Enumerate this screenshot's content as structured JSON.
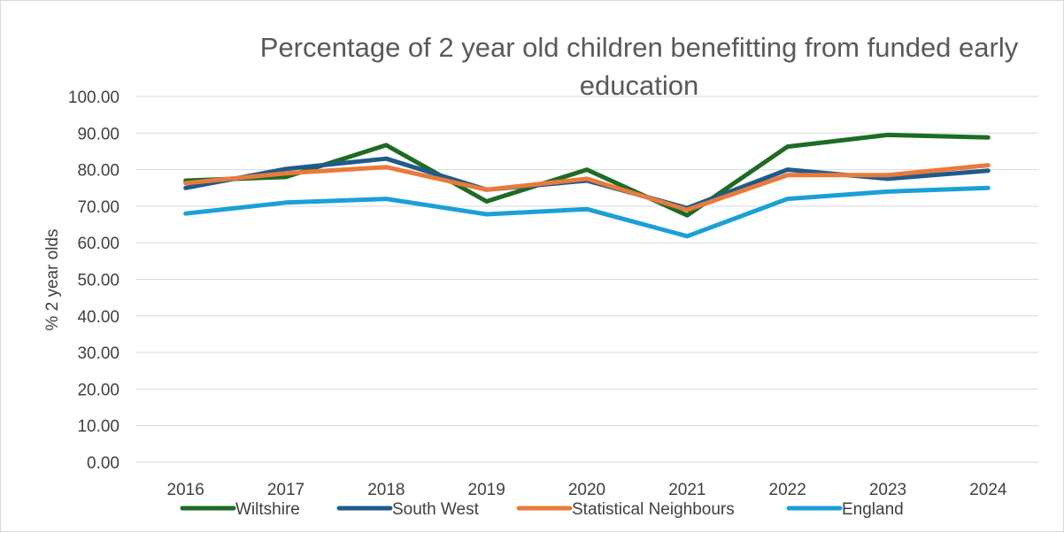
{
  "chart_data": {
    "type": "line",
    "title": "Percentage of 2 year old children benefitting from funded early education",
    "title_lines": [
      "Percentage of 2 year old children benefitting from funded early",
      "education"
    ],
    "xlabel": "",
    "ylabel": "% 2 year olds",
    "categories": [
      "2016",
      "2017",
      "2018",
      "2019",
      "2020",
      "2021",
      "2022",
      "2023",
      "2024"
    ],
    "ylim": [
      0,
      100
    ],
    "yticks": [
      "0.00",
      "10.00",
      "20.00",
      "30.00",
      "40.00",
      "50.00",
      "60.00",
      "70.00",
      "80.00",
      "90.00",
      "100.00"
    ],
    "grid": true,
    "legend_position": "bottom",
    "series": [
      {
        "name": "Wiltshire",
        "color": "#1e6b24",
        "values": [
          77.0,
          78.0,
          86.7,
          71.3,
          80.0,
          67.5,
          86.3,
          89.5,
          88.8
        ]
      },
      {
        "name": "South West",
        "color": "#1f5b8a",
        "values": [
          75.0,
          80.2,
          83.0,
          74.5,
          77.0,
          69.5,
          80.0,
          77.5,
          79.7
        ]
      },
      {
        "name": "Statistical Neighbours",
        "color": "#e97a3c",
        "values": [
          76.3,
          79.0,
          80.7,
          74.5,
          77.5,
          69.0,
          78.5,
          78.5,
          81.2
        ]
      },
      {
        "name": "England",
        "color": "#1aa0d6",
        "values": [
          68.0,
          71.0,
          72.0,
          67.8,
          69.2,
          61.8,
          72.0,
          74.0,
          75.0
        ]
      }
    ]
  }
}
